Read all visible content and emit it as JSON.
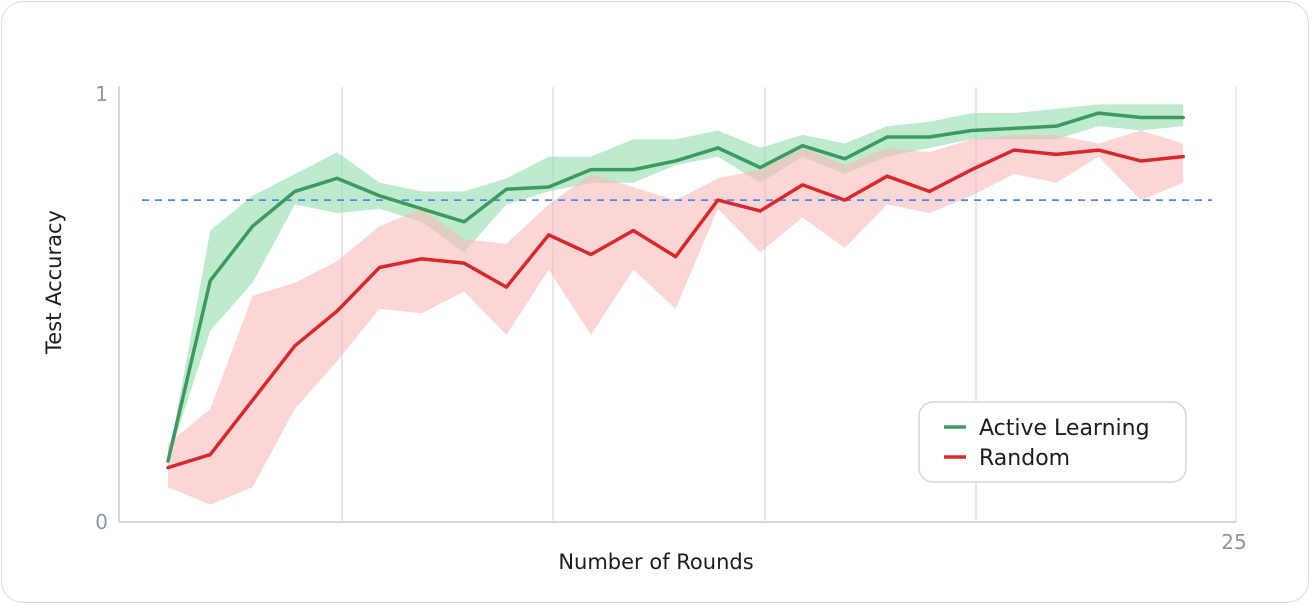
{
  "chart_data": {
    "type": "line",
    "xlabel": "Number of Rounds",
    "ylabel": "Test Accuracy",
    "xlim": [
      0,
      25
    ],
    "ylim": [
      0,
      1
    ],
    "x_tick_labels": [
      "25"
    ],
    "y_tick_labels": [
      "1",
      "0"
    ],
    "grid": "vertical",
    "legend_position": "bottom-right",
    "reference_line": {
      "y": 0.74,
      "style": "dashed",
      "color": "#4f86ea"
    },
    "x": [
      1,
      2,
      3,
      4,
      5,
      6,
      7,
      8,
      9,
      10,
      11,
      12,
      13,
      14,
      15,
      16,
      17,
      18,
      19,
      20,
      21,
      22,
      23,
      24,
      25
    ],
    "series": [
      {
        "name": "Active Learning",
        "color": "#3c9a5e",
        "band_color": "#8fdca8",
        "values": [
          0.14,
          0.555,
          0.68,
          0.76,
          0.79,
          0.75,
          0.72,
          0.69,
          0.765,
          0.77,
          0.81,
          0.81,
          0.83,
          0.86,
          0.815,
          0.865,
          0.835,
          0.885,
          0.885,
          0.9,
          0.905,
          0.91,
          0.94,
          0.93,
          0.93
        ],
        "lower": [
          0.14,
          0.44,
          0.55,
          0.73,
          0.71,
          0.72,
          0.69,
          0.62,
          0.73,
          0.76,
          0.78,
          0.78,
          0.82,
          0.84,
          0.78,
          0.84,
          0.8,
          0.84,
          0.86,
          0.88,
          0.88,
          0.88,
          0.91,
          0.9,
          0.91
        ],
        "upper": [
          0.14,
          0.67,
          0.75,
          0.8,
          0.85,
          0.78,
          0.76,
          0.76,
          0.79,
          0.84,
          0.84,
          0.88,
          0.88,
          0.9,
          0.86,
          0.89,
          0.87,
          0.91,
          0.92,
          0.94,
          0.94,
          0.95,
          0.96,
          0.96,
          0.96
        ]
      },
      {
        "name": "Random",
        "color": "#d9282b",
        "band_color": "#f8b8b8",
        "values": [
          0.125,
          0.155,
          0.28,
          0.405,
          0.485,
          0.585,
          0.605,
          0.595,
          0.54,
          0.66,
          0.615,
          0.67,
          0.61,
          0.74,
          0.715,
          0.775,
          0.74,
          0.795,
          0.76,
          0.81,
          0.855,
          0.845,
          0.855,
          0.83,
          0.84
        ],
        "lower": [
          0.08,
          0.04,
          0.08,
          0.26,
          0.37,
          0.49,
          0.48,
          0.53,
          0.43,
          0.58,
          0.43,
          0.58,
          0.49,
          0.72,
          0.62,
          0.7,
          0.63,
          0.73,
          0.71,
          0.75,
          0.8,
          0.78,
          0.84,
          0.74,
          0.78
        ],
        "upper": [
          0.18,
          0.26,
          0.52,
          0.55,
          0.6,
          0.68,
          0.72,
          0.65,
          0.64,
          0.73,
          0.8,
          0.77,
          0.74,
          0.79,
          0.81,
          0.86,
          0.82,
          0.86,
          0.85,
          0.88,
          0.89,
          0.89,
          0.87,
          0.9,
          0.87
        ]
      }
    ]
  }
}
